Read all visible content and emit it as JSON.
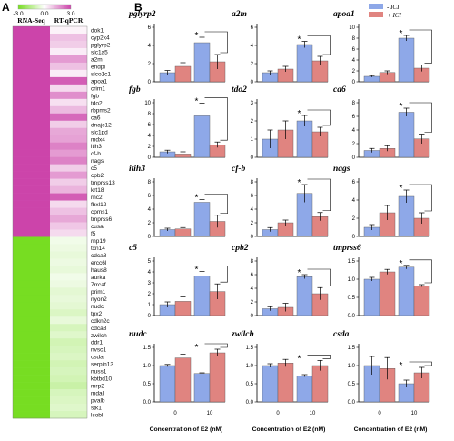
{
  "panel_a_label": "A",
  "panel_b_label": "B",
  "chart_data": [
    {
      "type": "heatmap",
      "scale": {
        "min_label": "-3.0",
        "mid_label": "0.0",
        "max_label": "3.0",
        "colors": [
          "#77dd22",
          "#ffffff",
          "#cc44aa"
        ]
      },
      "columns": [
        "RNA-Seq",
        "RT-qPCR"
      ],
      "rows": [
        {
          "gene": "dok1",
          "values": [
            3.0,
            0.2
          ]
        },
        {
          "gene": "cyp2k4",
          "values": [
            3.0,
            1.0
          ]
        },
        {
          "gene": "pglyrp2",
          "values": [
            3.0,
            0.8
          ]
        },
        {
          "gene": "slc1a5",
          "values": [
            3.0,
            0.3
          ]
        },
        {
          "gene": "a2m",
          "values": [
            3.0,
            1.6
          ]
        },
        {
          "gene": "endpl",
          "values": [
            3.0,
            1.0
          ]
        },
        {
          "gene": "slco1c1",
          "values": [
            3.0,
            0.3
          ]
        },
        {
          "gene": "apoa1",
          "values": [
            3.0,
            2.6
          ]
        },
        {
          "gene": "crim1",
          "values": [
            3.0,
            0.6
          ]
        },
        {
          "gene": "fgb",
          "values": [
            3.0,
            1.8
          ]
        },
        {
          "gene": "tdo2",
          "values": [
            3.0,
            0.5
          ]
        },
        {
          "gene": "rbpms2",
          "values": [
            3.0,
            1.1
          ]
        },
        {
          "gene": "ca6",
          "values": [
            3.0,
            2.4
          ]
        },
        {
          "gene": "dnajc12",
          "values": [
            3.0,
            0.8
          ]
        },
        {
          "gene": "slc1pd",
          "values": [
            3.0,
            1.4
          ]
        },
        {
          "gene": "mdx4",
          "values": [
            3.0,
            1.5
          ]
        },
        {
          "gene": "itih3",
          "values": [
            3.0,
            2.0
          ]
        },
        {
          "gene": "cf-b",
          "values": [
            3.0,
            1.6
          ]
        },
        {
          "gene": "nags",
          "values": [
            3.0,
            2.0
          ]
        },
        {
          "gene": "c5",
          "values": [
            3.0,
            0.8
          ]
        },
        {
          "gene": "cpb2",
          "values": [
            3.0,
            1.6
          ]
        },
        {
          "gene": "tmprss13",
          "values": [
            3.0,
            0.8
          ]
        },
        {
          "gene": "krt18",
          "values": [
            3.0,
            1.2
          ]
        },
        {
          "gene": "rnc2",
          "values": [
            3.0,
            2.6
          ]
        },
        {
          "gene": "fbxl12",
          "values": [
            3.0,
            0.6
          ]
        },
        {
          "gene": "cpms1",
          "values": [
            3.0,
            1.0
          ]
        },
        {
          "gene": "tmprss6",
          "values": [
            3.0,
            1.4
          ]
        },
        {
          "gene": "cusa",
          "values": [
            3.0,
            0.9
          ]
        },
        {
          "gene": "f5",
          "values": [
            3.0,
            0.6
          ]
        },
        {
          "gene": "rnp19",
          "values": [
            -3.0,
            -0.3
          ]
        },
        {
          "gene": "txn14",
          "values": [
            -3.0,
            -0.4
          ]
        },
        {
          "gene": "cdca8",
          "values": [
            -3.0,
            -0.5
          ]
        },
        {
          "gene": "ercc6l",
          "values": [
            -3.0,
            -0.4
          ]
        },
        {
          "gene": "haus8",
          "values": [
            -3.0,
            -0.5
          ]
        },
        {
          "gene": "aurka",
          "values": [
            -3.0,
            -0.3
          ]
        },
        {
          "gene": "7rrcaf",
          "values": [
            -3.0,
            -0.4
          ]
        },
        {
          "gene": "prim1",
          "values": [
            -3.0,
            -0.6
          ]
        },
        {
          "gene": "nyon2",
          "values": [
            -3.0,
            -0.5
          ]
        },
        {
          "gene": "nudc",
          "values": [
            -3.0,
            -0.6
          ]
        },
        {
          "gene": "tpx2",
          "values": [
            -3.0,
            -0.8
          ]
        },
        {
          "gene": "cdkn2c",
          "values": [
            -3.0,
            -0.5
          ]
        },
        {
          "gene": "cdca8",
          "values": [
            -3.0,
            -0.9
          ]
        },
        {
          "gene": "zwilch",
          "values": [
            -3.0,
            -0.7
          ]
        },
        {
          "gene": "ddr1",
          "values": [
            -3.0,
            -1.0
          ]
        },
        {
          "gene": "nvsc1",
          "values": [
            -3.0,
            -0.9
          ]
        },
        {
          "gene": "csda",
          "values": [
            -3.0,
            -0.8
          ]
        },
        {
          "gene": "serpin13",
          "values": [
            -3.0,
            -1.0
          ]
        },
        {
          "gene": "nuss1",
          "values": [
            -3.0,
            -0.9
          ]
        },
        {
          "gene": "kbtbd10",
          "values": [
            -3.0,
            -1.0
          ]
        },
        {
          "gene": "mrp2",
          "values": [
            -3.0,
            -1.2
          ]
        },
        {
          "gene": "mdal",
          "values": [
            -3.0,
            -0.9
          ]
        },
        {
          "gene": "pvalb",
          "values": [
            -3.0,
            -0.8
          ]
        },
        {
          "gene": "stk1",
          "values": [
            -3.0,
            -0.7
          ]
        },
        {
          "gene": "lsobl",
          "values": [
            -3.0,
            -0.9
          ]
        }
      ]
    },
    {
      "type": "bar",
      "legend": {
        "position": "top-right",
        "entries": [
          {
            "name": "- ICI",
            "color": "#8ea8e8"
          },
          {
            "name": "+ ICI",
            "color": "#e08480"
          }
        ]
      },
      "categories": [
        "0",
        "10"
      ],
      "xlabel": "Concentration of E2 (nM)",
      "panels": [
        {
          "title": "pglyrp2",
          "ylim": [
            0,
            6
          ],
          "ticks": [
            "0",
            "2",
            "4",
            "6"
          ],
          "minus": [
            1.0,
            4.3
          ],
          "minus_err": [
            0.25,
            0.6
          ],
          "plus": [
            1.7,
            2.2
          ],
          "plus_err": [
            0.4,
            0.8
          ],
          "star": "*"
        },
        {
          "title": "a2m",
          "ylim": [
            0,
            6
          ],
          "ticks": [
            "0",
            "2",
            "4",
            "6"
          ],
          "minus": [
            1.0,
            4.1
          ],
          "minus_err": [
            0.2,
            0.35
          ],
          "plus": [
            1.4,
            2.3
          ],
          "plus_err": [
            0.3,
            0.5
          ],
          "star": "*"
        },
        {
          "title": "apoa1",
          "ylim": [
            0,
            10
          ],
          "ticks": [
            "0",
            "2",
            "4",
            "6",
            "8",
            "10"
          ],
          "minus": [
            1.0,
            8.0
          ],
          "minus_err": [
            0.15,
            0.5
          ],
          "plus": [
            1.7,
            2.5
          ],
          "plus_err": [
            0.3,
            0.6
          ],
          "star": "*"
        },
        {
          "title": "fgb",
          "ylim": [
            0,
            10
          ],
          "ticks": [
            "0",
            "2",
            "4",
            "6",
            "8",
            "10"
          ],
          "minus": [
            1.0,
            7.6
          ],
          "minus_err": [
            0.3,
            2.3
          ],
          "plus": [
            0.6,
            2.3
          ],
          "plus_err": [
            0.4,
            0.5
          ],
          "star": "*"
        },
        {
          "title": "tdo2",
          "ylim": [
            0,
            3
          ],
          "ticks": [
            "0",
            "1",
            "2",
            "3"
          ],
          "minus": [
            1.0,
            2.0
          ],
          "minus_err": [
            0.5,
            0.3
          ],
          "plus": [
            1.5,
            1.4
          ],
          "plus_err": [
            0.5,
            0.25
          ],
          "star": "*"
        },
        {
          "title": "ca6",
          "ylim": [
            0,
            8
          ],
          "ticks": [
            "0",
            "2",
            "4",
            "6",
            "8"
          ],
          "minus": [
            1.0,
            6.6
          ],
          "minus_err": [
            0.3,
            0.6
          ],
          "plus": [
            1.3,
            2.7
          ],
          "plus_err": [
            0.4,
            0.7
          ],
          "star": "*"
        },
        {
          "title": "itih3",
          "ylim": [
            0,
            8
          ],
          "ticks": [
            "0",
            "2",
            "4",
            "6",
            "8"
          ],
          "minus": [
            1.0,
            5.0
          ],
          "minus_err": [
            0.2,
            0.4
          ],
          "plus": [
            1.1,
            2.2
          ],
          "plus_err": [
            0.2,
            0.9
          ],
          "star": "*"
        },
        {
          "title": "cf-b",
          "ylim": [
            0,
            8
          ],
          "ticks": [
            "0",
            "2",
            "4",
            "6",
            "8"
          ],
          "minus": [
            1.0,
            6.3
          ],
          "minus_err": [
            0.3,
            1.3
          ],
          "plus": [
            2.0,
            2.9
          ],
          "plus_err": [
            0.4,
            0.6
          ],
          "star": "*"
        },
        {
          "title": "nags",
          "ylim": [
            0,
            6
          ],
          "ticks": [
            "0",
            "2",
            "4",
            "6"
          ],
          "minus": [
            1.0,
            4.4
          ],
          "minus_err": [
            0.3,
            0.7
          ],
          "plus": [
            2.6,
            2.0
          ],
          "plus_err": [
            0.8,
            0.6
          ],
          "star": "*"
        },
        {
          "title": "c5",
          "ylim": [
            0,
            5
          ],
          "ticks": [
            "0",
            "1",
            "2",
            "3",
            "4",
            "5"
          ],
          "minus": [
            1.0,
            3.6
          ],
          "minus_err": [
            0.25,
            0.45
          ],
          "plus": [
            1.3,
            2.2
          ],
          "plus_err": [
            0.4,
            0.7
          ],
          "star": "*"
        },
        {
          "title": "cpb2",
          "ylim": [
            0,
            8
          ],
          "ticks": [
            "0",
            "2",
            "4",
            "6",
            "8"
          ],
          "minus": [
            1.0,
            5.7
          ],
          "minus_err": [
            0.3,
            0.3
          ],
          "plus": [
            1.2,
            3.2
          ],
          "plus_err": [
            0.6,
            0.9
          ],
          "star": "*"
        },
        {
          "title": "tmprss6",
          "ylim": [
            0,
            1.5
          ],
          "ticks": [
            "0.0",
            "0.5",
            "1.0",
            "1.5"
          ],
          "minus": [
            1.0,
            1.33
          ],
          "minus_err": [
            0.05,
            0.05
          ],
          "plus": [
            1.2,
            0.82
          ],
          "plus_err": [
            0.07,
            0.03
          ],
          "star": "*"
        },
        {
          "title": "nudc",
          "ylim": [
            0,
            1.5
          ],
          "ticks": [
            "0.0",
            "0.5",
            "1.0",
            "1.5"
          ],
          "minus": [
            1.0,
            0.78
          ],
          "minus_err": [
            0.03,
            0.02
          ],
          "plus": [
            1.21,
            1.35
          ],
          "plus_err": [
            0.1,
            0.1
          ],
          "star": "*"
        },
        {
          "title": "zwilch",
          "ylim": [
            0,
            1.5
          ],
          "ticks": [
            "0.0",
            "0.5",
            "1.0",
            "1.5"
          ],
          "minus": [
            1.0,
            0.72
          ],
          "minus_err": [
            0.05,
            0.03
          ],
          "plus": [
            1.07,
            1.0
          ],
          "plus_err": [
            0.1,
            0.14
          ],
          "star": "*"
        },
        {
          "title": "csda",
          "ylim": [
            0,
            1.5
          ],
          "ticks": [
            "0.0",
            "0.5",
            "1.0",
            "1.5"
          ],
          "minus": [
            1.0,
            0.5
          ],
          "minus_err": [
            0.25,
            0.1
          ],
          "plus": [
            0.92,
            0.8
          ],
          "plus_err": [
            0.3,
            0.15
          ],
          "star": "*"
        }
      ]
    }
  ]
}
